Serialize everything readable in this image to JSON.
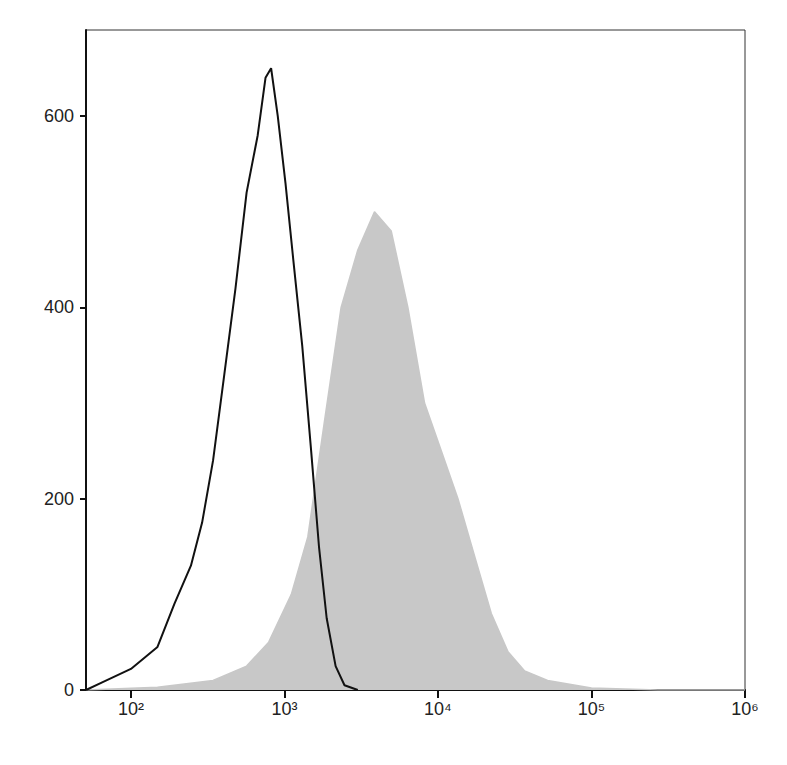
{
  "chart_data": {
    "type": "line",
    "log": "x",
    "grid": false,
    "xlim": [
      51,
      1000000
    ],
    "xticks": [
      {
        "value": 100,
        "label": "10²"
      },
      {
        "value": 1000,
        "label": "10³"
      },
      {
        "value": 10000,
        "label": "10⁴"
      },
      {
        "value": 100000,
        "label": "10⁵"
      },
      {
        "value": 1000000,
        "label": "10⁶"
      }
    ],
    "ylim": [
      0,
      690
    ],
    "yticks": [
      0,
      200,
      400,
      600
    ],
    "series": [
      {
        "type": "area",
        "color": "#c8c8c8",
        "x": [
          51,
          149,
          343,
          567,
          790,
          1109,
          1420,
          1820,
          2340,
          3006,
          3860,
          4960,
          6370,
          8180,
          10510,
          13500,
          17330,
          22260,
          28600,
          36700,
          51800,
          100000,
          270000,
          1000000
        ],
        "values": [
          0,
          3,
          10,
          25,
          50,
          100,
          160,
          280,
          400,
          460,
          500,
          480,
          400,
          300,
          250,
          200,
          140,
          80,
          40,
          20,
          10,
          2,
          0,
          0
        ]
      },
      {
        "type": "line",
        "color": "#111111",
        "x": [
          51,
          65,
          100,
          149,
          192,
          246,
          291,
          343,
          406,
          480,
          567,
          670,
          753,
          819,
          905,
          1016,
          1142,
          1306,
          1493,
          1679,
          1885,
          2155,
          2462,
          3006
        ],
        "values": [
          0,
          8,
          22,
          45,
          90,
          130,
          175,
          240,
          330,
          420,
          520,
          580,
          640,
          650,
          600,
          530,
          450,
          360,
          250,
          150,
          75,
          25,
          5,
          0
        ]
      }
    ]
  }
}
